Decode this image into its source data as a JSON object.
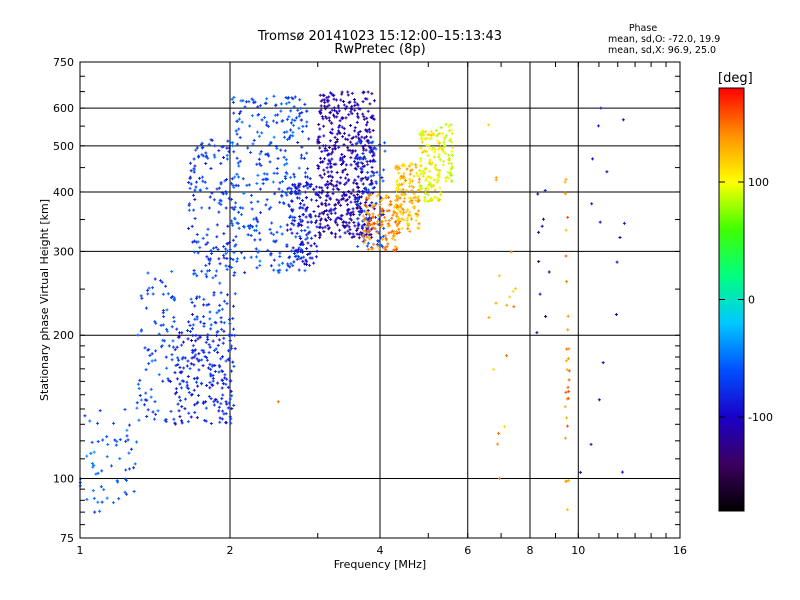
{
  "chart_data": {
    "type": "scatter",
    "title": "Tromsø 20141023 15:12:00–15:13:43",
    "subtitle": "RwPretec (8p)",
    "xlabel": "Frequency [MHz]",
    "ylabel": "Stationary phase Virtual Height [km]",
    "x_scale": "log",
    "y_scale": "log",
    "xlim": [
      1,
      16
    ],
    "ylim": [
      75,
      750
    ],
    "x_ticks": [
      "1",
      "2",
      "4",
      "6",
      "8",
      "10",
      "16"
    ],
    "y_ticks": [
      "75",
      "100",
      "200",
      "300",
      "400",
      "500",
      "600",
      "750"
    ],
    "grid": true,
    "stats": {
      "heading": "Phase",
      "line1": "mean, sd,O: -72.0, 19.9",
      "line2": "mean, sd,X:  96.9, 25.0"
    },
    "colorbar": {
      "label": "[deg]",
      "range": [
        -180,
        180
      ],
      "ticks": [
        "100",
        "0",
        "-100"
      ],
      "colors": [
        "#000000",
        "#3c0060",
        "#1a00c8",
        "#0050ff",
        "#00c8ff",
        "#00ff80",
        "#40ff00",
        "#ffff00",
        "#ff9000",
        "#ff0000"
      ]
    },
    "clusters": [
      {
        "f": [
          1.0,
          1.3
        ],
        "h": [
          85,
          140
        ],
        "phase": -60,
        "n": 60
      },
      {
        "f": [
          1.3,
          1.55
        ],
        "h": [
          130,
          280
        ],
        "phase": -65,
        "n": 90
      },
      {
        "f": [
          1.55,
          2.05
        ],
        "h": [
          130,
          210
        ],
        "phase": -80,
        "n": 220
      },
      {
        "f": [
          1.65,
          2.05
        ],
        "h": [
          210,
          520
        ],
        "phase": -70,
        "n": 200
      },
      {
        "f": [
          2.0,
          2.9
        ],
        "h": [
          270,
          640
        ],
        "phase": -65,
        "n": 320
      },
      {
        "f": [
          2.6,
          3.0
        ],
        "h": [
          280,
          420
        ],
        "phase": -90,
        "n": 120
      },
      {
        "f": [
          3.0,
          3.9
        ],
        "h": [
          320,
          650
        ],
        "phase": -110,
        "n": 520
      },
      {
        "f": [
          3.6,
          4.1
        ],
        "h": [
          300,
          520
        ],
        "phase": -70,
        "n": 90
      },
      {
        "f": [
          3.7,
          4.4
        ],
        "h": [
          300,
          400
        ],
        "phase": 140,
        "n": 120
      },
      {
        "f": [
          4.3,
          4.8
        ],
        "h": [
          330,
          460
        ],
        "phase": 125,
        "n": 140
      },
      {
        "f": [
          4.8,
          5.3
        ],
        "h": [
          380,
          540
        ],
        "phase": 100,
        "n": 130
      },
      {
        "f": [
          5.3,
          5.6
        ],
        "h": [
          420,
          560
        ],
        "phase": 95,
        "n": 50
      },
      {
        "f": [
          6.5,
          7.5
        ],
        "h": [
          95,
          600
        ],
        "phase": 130,
        "n": 18
      },
      {
        "f": [
          8.2,
          8.8
        ],
        "h": [
          180,
          420
        ],
        "phase": -110,
        "n": 10
      },
      {
        "f": [
          9.4,
          9.6
        ],
        "h": [
          85,
          480
        ],
        "phase": 140,
        "n": 30
      },
      {
        "f": [
          10.5,
          12.5
        ],
        "h": [
          100,
          600
        ],
        "phase": -100,
        "n": 14
      }
    ],
    "points": [
      {
        "f": 2.5,
        "h": 145,
        "phase": 150
      },
      {
        "f": 1.07,
        "h": 85,
        "phase": -80
      },
      {
        "f": 10.1,
        "h": 103,
        "phase": -120
      },
      {
        "f": 11.1,
        "h": 600,
        "phase": -90
      }
    ]
  }
}
